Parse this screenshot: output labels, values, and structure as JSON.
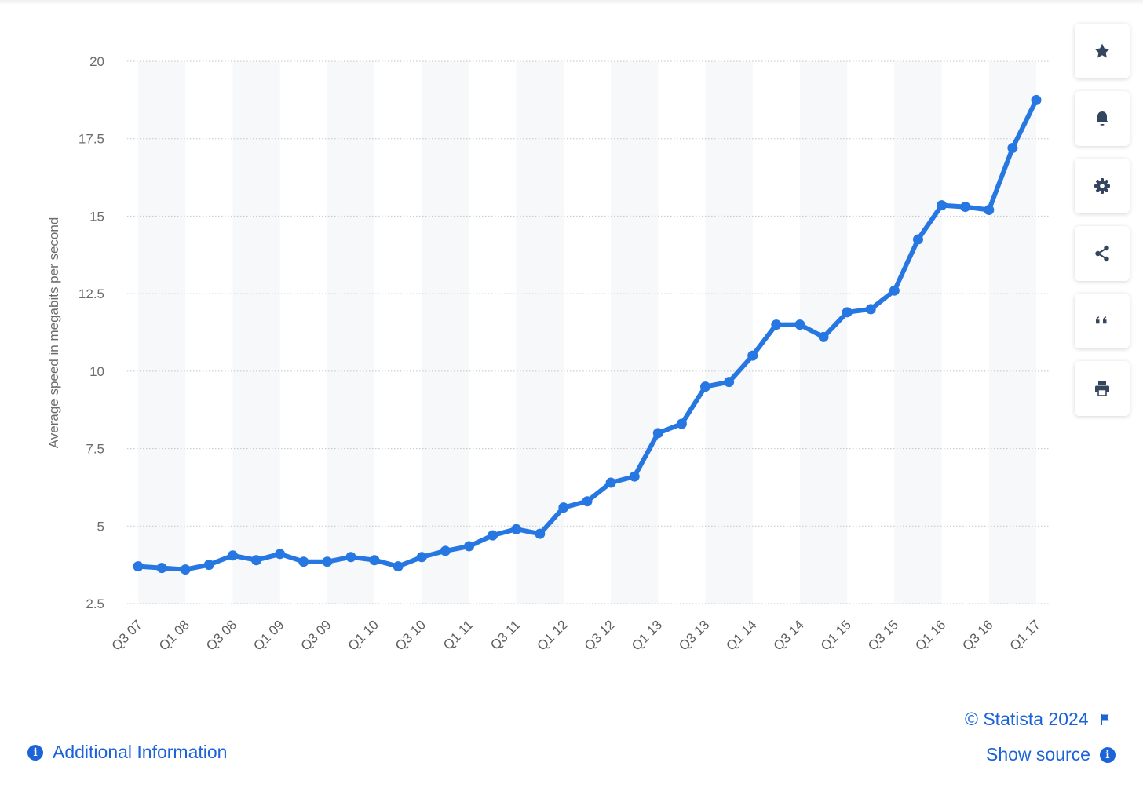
{
  "chart_data": {
    "type": "line",
    "title": "",
    "xlabel": "",
    "ylabel": "Average speed in megabits per second",
    "ylim": [
      2.5,
      20
    ],
    "yticks": [
      "2.5",
      "5",
      "7.5",
      "10",
      "12.5",
      "15",
      "17.5",
      "20"
    ],
    "grid": true,
    "legend": "none",
    "x": [
      "Q3 07",
      "Q4 07",
      "Q1 08",
      "Q2 08",
      "Q3 08",
      "Q4 08",
      "Q1 09",
      "Q2 09",
      "Q3 09",
      "Q4 09",
      "Q1 10",
      "Q2 10",
      "Q3 10",
      "Q4 10",
      "Q1 11",
      "Q2 11",
      "Q3 11",
      "Q4 11",
      "Q1 12",
      "Q2 12",
      "Q3 12",
      "Q4 12",
      "Q1 13",
      "Q2 13",
      "Q3 13",
      "Q4 13",
      "Q1 14",
      "Q2 14",
      "Q3 14",
      "Q4 14",
      "Q1 15",
      "Q2 15",
      "Q3 15",
      "Q4 15",
      "Q1 16",
      "Q2 16",
      "Q3 16",
      "Q4 16",
      "Q1 17"
    ],
    "x_tick_labels": [
      "Q3 07",
      "Q1 08",
      "Q3 08",
      "Q1 09",
      "Q3 09",
      "Q1 10",
      "Q3 10",
      "Q1 11",
      "Q3 11",
      "Q1 12",
      "Q3 12",
      "Q1 13",
      "Q3 13",
      "Q1 14",
      "Q3 14",
      "Q1 15",
      "Q3 15",
      "Q1 16",
      "Q3 16",
      "Q1 17"
    ],
    "series": [
      {
        "values": [
          3.7,
          3.65,
          3.6,
          3.75,
          4.05,
          3.9,
          4.1,
          3.85,
          3.85,
          4.0,
          3.9,
          3.7,
          4.0,
          4.2,
          4.35,
          4.7,
          4.9,
          4.75,
          5.6,
          5.8,
          6.4,
          6.6,
          8.0,
          8.3,
          9.5,
          9.65,
          10.5,
          11.5,
          11.5,
          11.1,
          11.9,
          12.0,
          12.6,
          14.25,
          15.35,
          15.3,
          15.2,
          17.2,
          18.75
        ],
        "color": "#2677e2"
      }
    ]
  },
  "toolbar": {
    "buttons": [
      {
        "name": "favorite",
        "icon": "star-icon"
      },
      {
        "name": "notification",
        "icon": "bell-icon"
      },
      {
        "name": "settings",
        "icon": "gear-icon"
      },
      {
        "name": "share",
        "icon": "share-icon"
      },
      {
        "name": "cite",
        "icon": "quote-icon"
      },
      {
        "name": "print",
        "icon": "printer-icon"
      }
    ]
  },
  "footer": {
    "copyright": "© Statista 2024",
    "show_source": "Show source",
    "additional_info": "Additional Information",
    "link_color": "#1c63d8"
  }
}
